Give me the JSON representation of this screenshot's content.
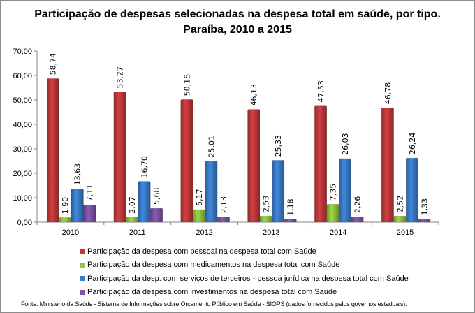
{
  "chart_data": {
    "type": "bar",
    "title": "Participação de despesas selecionadas na despesa total em saúde, por tipo.",
    "subtitle": "Paraíba, 2010 a 2015",
    "categories": [
      "2010",
      "2011",
      "2012",
      "2013",
      "2014",
      "2015"
    ],
    "ylim": [
      0,
      70
    ],
    "yticks": [
      "0,00",
      "10,00",
      "20,00",
      "30,00",
      "40,00",
      "50,00",
      "60,00",
      "70,00"
    ],
    "grid": false,
    "legend_position": "bottom",
    "series": [
      {
        "name": "Participação da despesa com pessoal na despesa total com Saúde",
        "color": "#c0393b",
        "values": [
          58.74,
          53.27,
          50.18,
          46.13,
          47.53,
          46.78
        ]
      },
      {
        "name": "Participação da despesa com medicamentos na despesa total com Saúde",
        "color": "#8fc73e",
        "values": [
          1.9,
          2.07,
          5.17,
          2.53,
          7.35,
          2.52
        ]
      },
      {
        "name": "Participação da desp. com serviços de terceiros - pessoa jurídica na despesa total com Saúde",
        "color": "#3a7cc9",
        "values": [
          13.63,
          16.7,
          25.01,
          25.33,
          26.03,
          26.24
        ]
      },
      {
        "name": "Participação da despesa com investimentos na despesa total com Saúde",
        "color": "#7d54a8",
        "values": [
          7.11,
          5.68,
          2.13,
          1.18,
          2.26,
          1.33
        ]
      }
    ],
    "data_labels": [
      [
        "58,74",
        "53,27",
        "50,18",
        "46,13",
        "47,53",
        "46,78"
      ],
      [
        "1,90",
        "2,07",
        "5,17",
        "2,53",
        "7,35",
        "2,52"
      ],
      [
        "13,63",
        "16,70",
        "25,01",
        "25,33",
        "26,03",
        "26,24"
      ],
      [
        "7,11",
        "5,68",
        "2,13",
        "1,18",
        "2,26",
        "1,33"
      ]
    ]
  },
  "source": "Fonte: Ministério da Saúde - Sistema de Informações sobre Orçamento Público em Saúde - SIOPS (dados fornecidos pelos governos estaduais)."
}
